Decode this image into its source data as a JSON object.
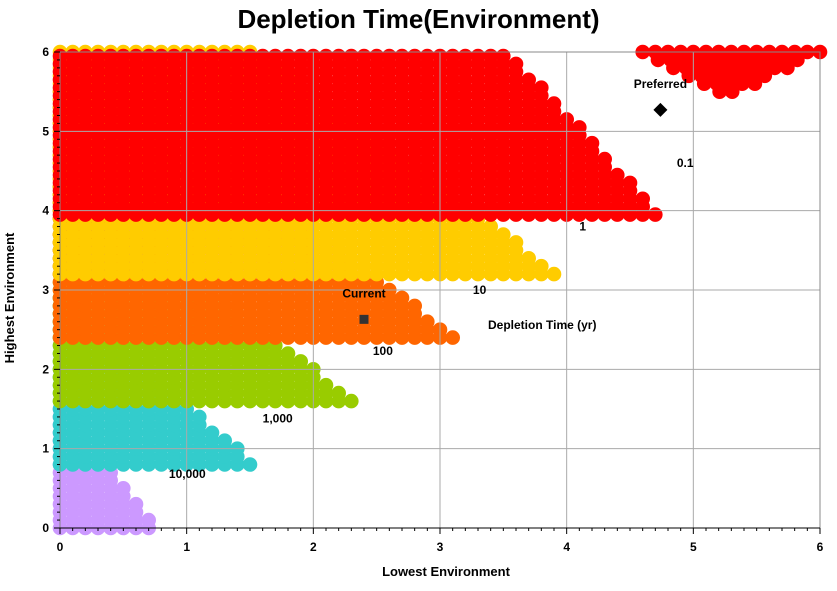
{
  "chart_data": {
    "type": "scatter",
    "title": "Depletion Time(Environment)",
    "xlabel": "Lowest Environment",
    "ylabel": "Highest Environment",
    "xlim": [
      0,
      6
    ],
    "ylim": [
      0,
      6
    ],
    "x_ticks": [
      "0",
      "1",
      "2",
      "3",
      "4",
      "5",
      "6"
    ],
    "y_ticks": [
      "0",
      "1",
      "2",
      "3",
      "4",
      "5",
      "6"
    ],
    "grid": true,
    "legend_title": "Depletion Time (yr)",
    "regions": [
      {
        "name": "10,000",
        "color": "#cc99ff",
        "y_min": 0.0,
        "y_max": 1.55,
        "x_max_at_top": 0.0,
        "x_max_at_bottom": 0.75,
        "label_pos": [
          0.86,
          0.68
        ]
      },
      {
        "name": "1,000",
        "color": "#33cccc",
        "y_min": 0.8,
        "y_max": 2.95,
        "x_max_at_top": 0.0,
        "x_max_at_bottom": 1.55,
        "label_pos": [
          1.6,
          1.38
        ]
      },
      {
        "name": "100",
        "color": "#99cc00",
        "y_min": 1.6,
        "y_max": 4.35,
        "x_max_at_top": 0.0,
        "x_max_at_bottom": 2.35,
        "label_pos": [
          2.47,
          2.23
        ]
      },
      {
        "name": "10",
        "color": "#ff6600",
        "y_min": 2.4,
        "y_max": 5.5,
        "x_max_at_top": 0.5,
        "x_max_at_bottom": 3.15,
        "label_pos": [
          3.26,
          3.0
        ]
      },
      {
        "name": "1",
        "color": "#ffcc00",
        "y_min": 3.2,
        "y_max": 6.0,
        "x_max_at_top": 1.55,
        "x_max_at_bottom": 3.95,
        "label_pos": [
          4.1,
          3.8
        ]
      },
      {
        "name": "0.1",
        "color": "#ff0000",
        "y_min": 3.95,
        "y_max": 6.0,
        "x_max_at_top": 3.55,
        "x_max_at_bottom": 4.75,
        "label_pos": [
          4.87,
          4.6
        ]
      }
    ],
    "red_upper_right": {
      "color": "#ff0000",
      "x_min": 4.6,
      "x_max": 6.0,
      "y_min": 5.3,
      "y_max": 6.0
    },
    "points": [
      {
        "name": "Current",
        "x": 2.4,
        "y": 2.63,
        "marker": "square",
        "color": "#333333"
      },
      {
        "name": "Preferred",
        "x": 4.74,
        "y": 5.27,
        "marker": "diamond",
        "color": "#000000"
      }
    ]
  }
}
